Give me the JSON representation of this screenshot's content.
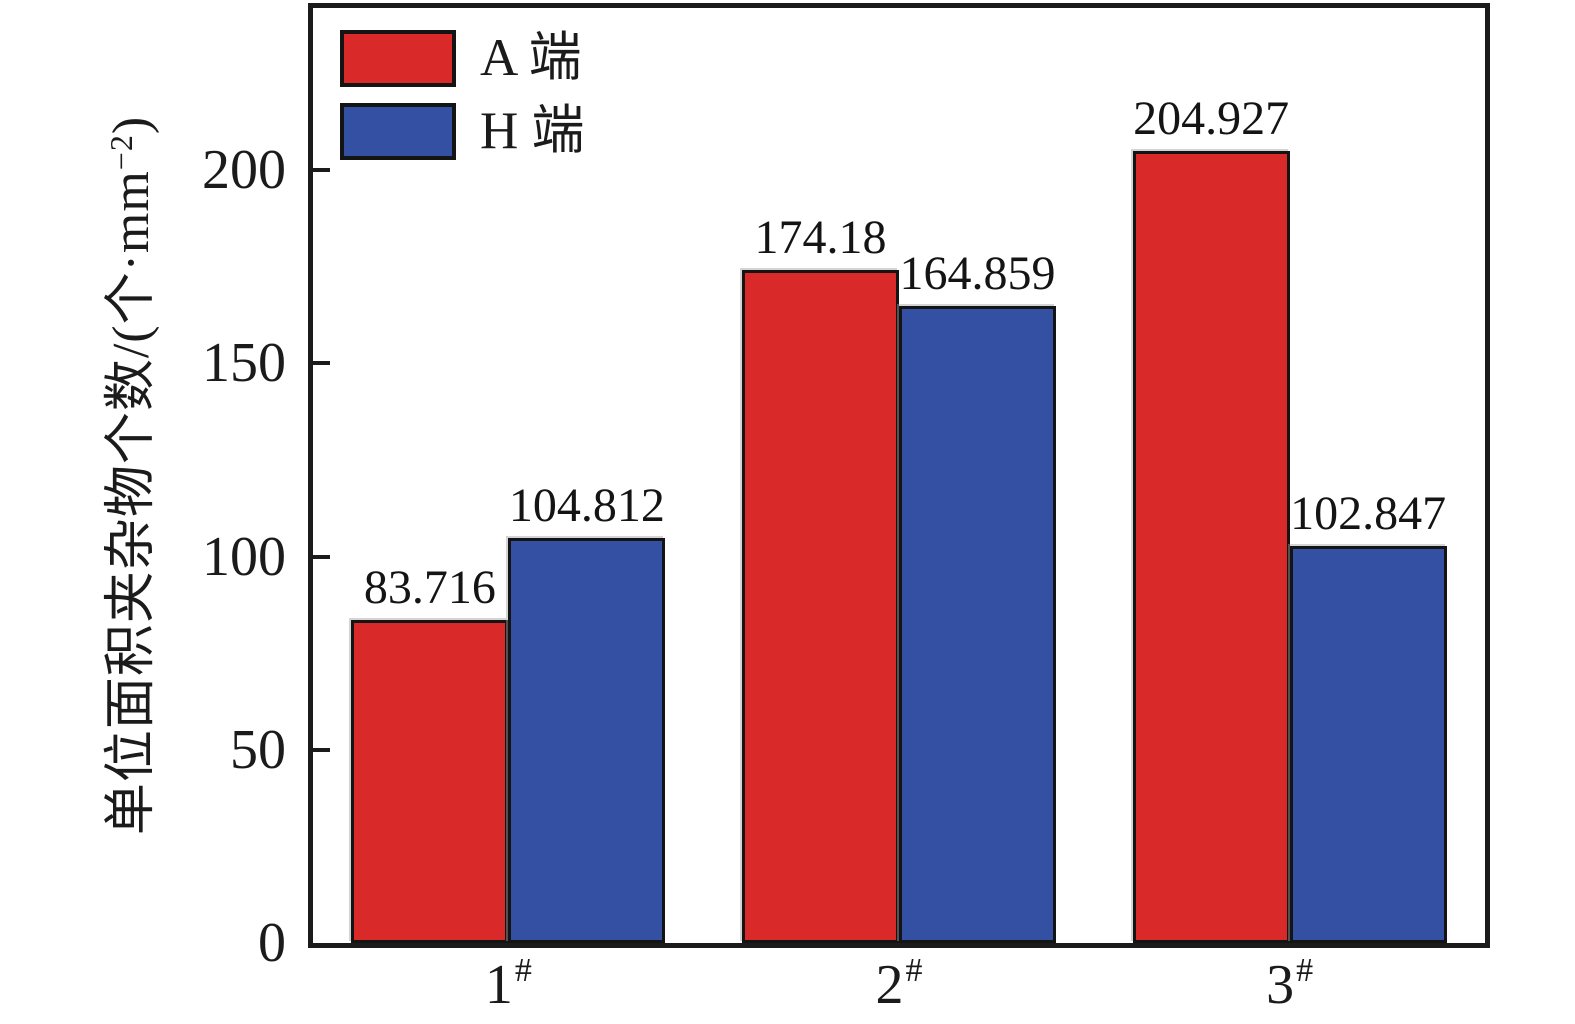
{
  "figure": {
    "background": "#ffffff",
    "ink_color": "#1b1b1b"
  },
  "legend": {
    "items": [
      {
        "label": "A 端"
      },
      {
        "label": "H 端"
      }
    ]
  },
  "y_axis": {
    "title_main": "单位面积夹杂物个数/(个·mm",
    "title_sup": "−2",
    "title_close": ")"
  },
  "chart_data": {
    "type": "bar",
    "title": "",
    "xlabel": "",
    "ylabel": "单位面积夹杂物个数/(个·mm−2)",
    "categories": [
      "1#",
      "2#",
      "3#"
    ],
    "xtick_labels": [
      {
        "base": "1",
        "sup": "#"
      },
      {
        "base": "2",
        "sup": "#"
      },
      {
        "base": "3",
        "sup": "#"
      }
    ],
    "series": [
      {
        "name": "A 端",
        "color": "#d92929",
        "values": [
          83.716,
          174.18,
          204.927
        ],
        "labels": [
          "83.716",
          "174.18",
          "204.927"
        ]
      },
      {
        "name": "H 端",
        "color": "#3450a2",
        "values": [
          104.812,
          164.859,
          102.847
        ],
        "labels": [
          "104.812",
          "164.859",
          "102.847"
        ]
      }
    ],
    "yticks": [
      0,
      50,
      100,
      150,
      200
    ],
    "ylim": [
      0,
      242
    ],
    "grid": false,
    "legend_position": "upper-left-inside",
    "value_labels_shown": true,
    "tick_direction": "in"
  }
}
